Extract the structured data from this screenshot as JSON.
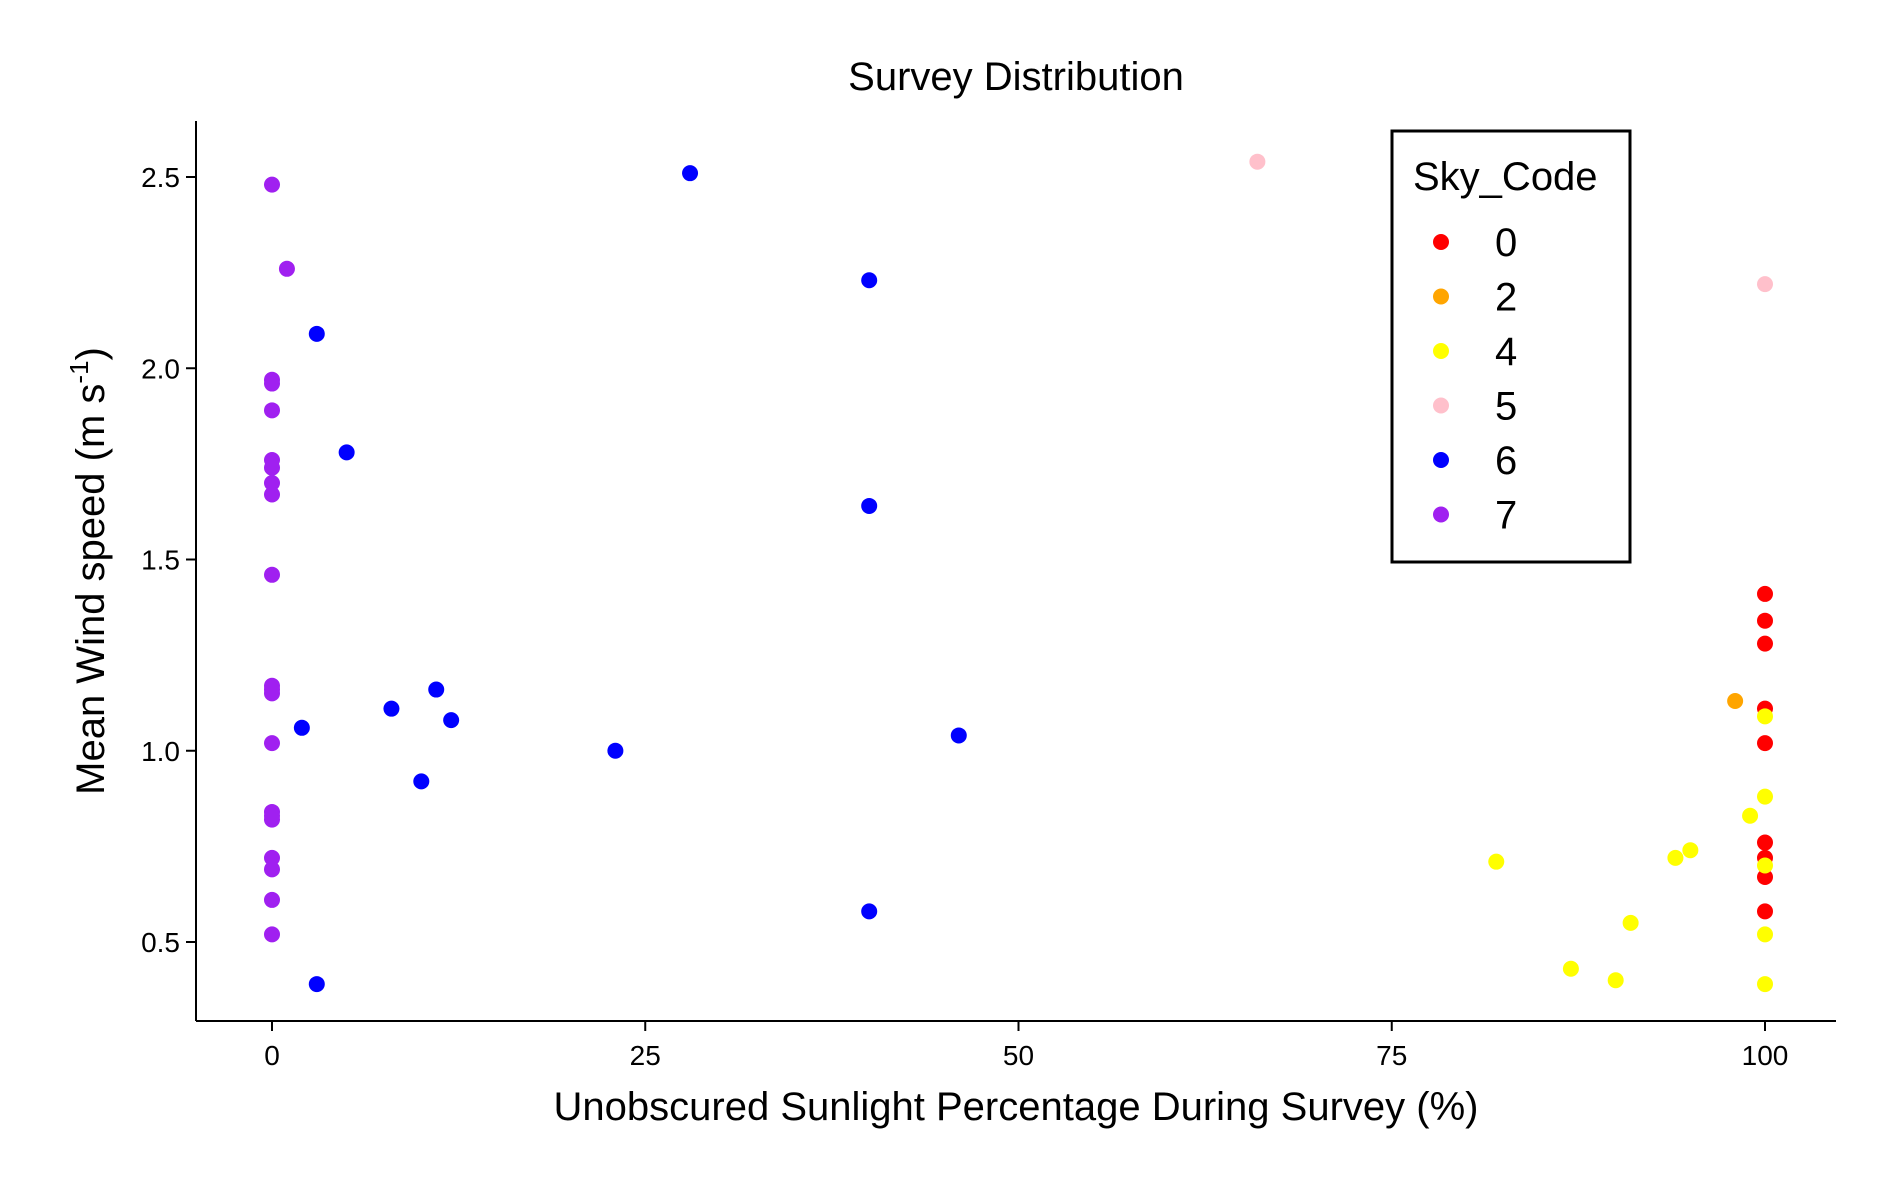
{
  "chart_data": {
    "type": "scatter",
    "title": "Survey Distribution",
    "xlabel": "Unobscured Sunlight Percentage During Survey (%)",
    "ylabel": {
      "main": "Mean Wind speed (m s",
      "sup": "-1",
      "close": ")"
    },
    "xlim": [
      -5,
      105
    ],
    "ylim": [
      0.3,
      2.65
    ],
    "x_ticks": [
      0,
      25,
      50,
      75,
      100
    ],
    "x_tick_labels": [
      "0",
      "25",
      "50",
      "75",
      "100"
    ],
    "y_ticks": [
      0.5,
      1.0,
      1.5,
      2.0,
      2.5
    ],
    "y_tick_labels": [
      "0.5",
      "1.0",
      "1.5",
      "2.0",
      "2.5"
    ],
    "grid": false,
    "legend": {
      "title": "Sky_Code",
      "position": "top-right"
    },
    "series": [
      {
        "name": "0",
        "color": "#ff0000",
        "points": [
          [
            100,
            1.41
          ],
          [
            100,
            1.34
          ],
          [
            100,
            1.28
          ],
          [
            100,
            1.11
          ],
          [
            100,
            1.02
          ],
          [
            100,
            0.76
          ],
          [
            100,
            0.72
          ],
          [
            100,
            0.67
          ],
          [
            100,
            0.58
          ]
        ]
      },
      {
        "name": "2",
        "color": "#ffa500",
        "points": [
          [
            98,
            1.13
          ]
        ]
      },
      {
        "name": "4",
        "color": "#ffff00",
        "points": [
          [
            82,
            0.71
          ],
          [
            87,
            0.43
          ],
          [
            90,
            0.4
          ],
          [
            91,
            0.55
          ],
          [
            94,
            0.72
          ],
          [
            95,
            0.74
          ],
          [
            99,
            0.83
          ],
          [
            100,
            1.09
          ],
          [
            100,
            0.88
          ],
          [
            100,
            0.7
          ],
          [
            100,
            0.52
          ],
          [
            100,
            0.39
          ]
        ]
      },
      {
        "name": "5",
        "color": "#ffc0cb",
        "points": [
          [
            66,
            2.54
          ],
          [
            100,
            2.22
          ]
        ]
      },
      {
        "name": "6",
        "color": "#0000ff",
        "points": [
          [
            28,
            2.51
          ],
          [
            40,
            2.23
          ],
          [
            3,
            2.09
          ],
          [
            5,
            1.78
          ],
          [
            40,
            1.64
          ],
          [
            11,
            1.16
          ],
          [
            8,
            1.11
          ],
          [
            12,
            1.08
          ],
          [
            2,
            1.06
          ],
          [
            46,
            1.04
          ],
          [
            23,
            1.0
          ],
          [
            10,
            0.92
          ],
          [
            40,
            0.58
          ],
          [
            3,
            0.39
          ]
        ]
      },
      {
        "name": "7",
        "color": "#a020f0",
        "points": [
          [
            0,
            2.48
          ],
          [
            1,
            2.26
          ],
          [
            0,
            1.97
          ],
          [
            0,
            1.96
          ],
          [
            0,
            1.89
          ],
          [
            0,
            1.76
          ],
          [
            0,
            1.74
          ],
          [
            0,
            1.7
          ],
          [
            0,
            1.67
          ],
          [
            0,
            1.46
          ],
          [
            0,
            1.17
          ],
          [
            0,
            1.16
          ],
          [
            0,
            1.15
          ],
          [
            0,
            1.02
          ],
          [
            0,
            0.84
          ],
          [
            0,
            0.83
          ],
          [
            0,
            0.82
          ],
          [
            0,
            0.72
          ],
          [
            0,
            0.69
          ],
          [
            0,
            0.61
          ],
          [
            0,
            0.52
          ]
        ]
      }
    ]
  }
}
